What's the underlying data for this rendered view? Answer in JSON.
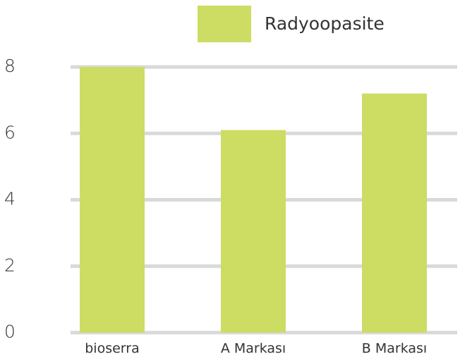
{
  "chart_data": {
    "type": "bar",
    "categories": [
      "bioserra",
      "A Markası",
      "B Markası"
    ],
    "series": [
      {
        "name": "Radyoopasite",
        "color": "#cddc63",
        "values": [
          8.0,
          6.1,
          7.2
        ]
      }
    ],
    "ylim": [
      0,
      8
    ],
    "yticks": [
      0,
      2,
      4,
      6,
      8
    ],
    "grid": true,
    "legend": "top"
  }
}
